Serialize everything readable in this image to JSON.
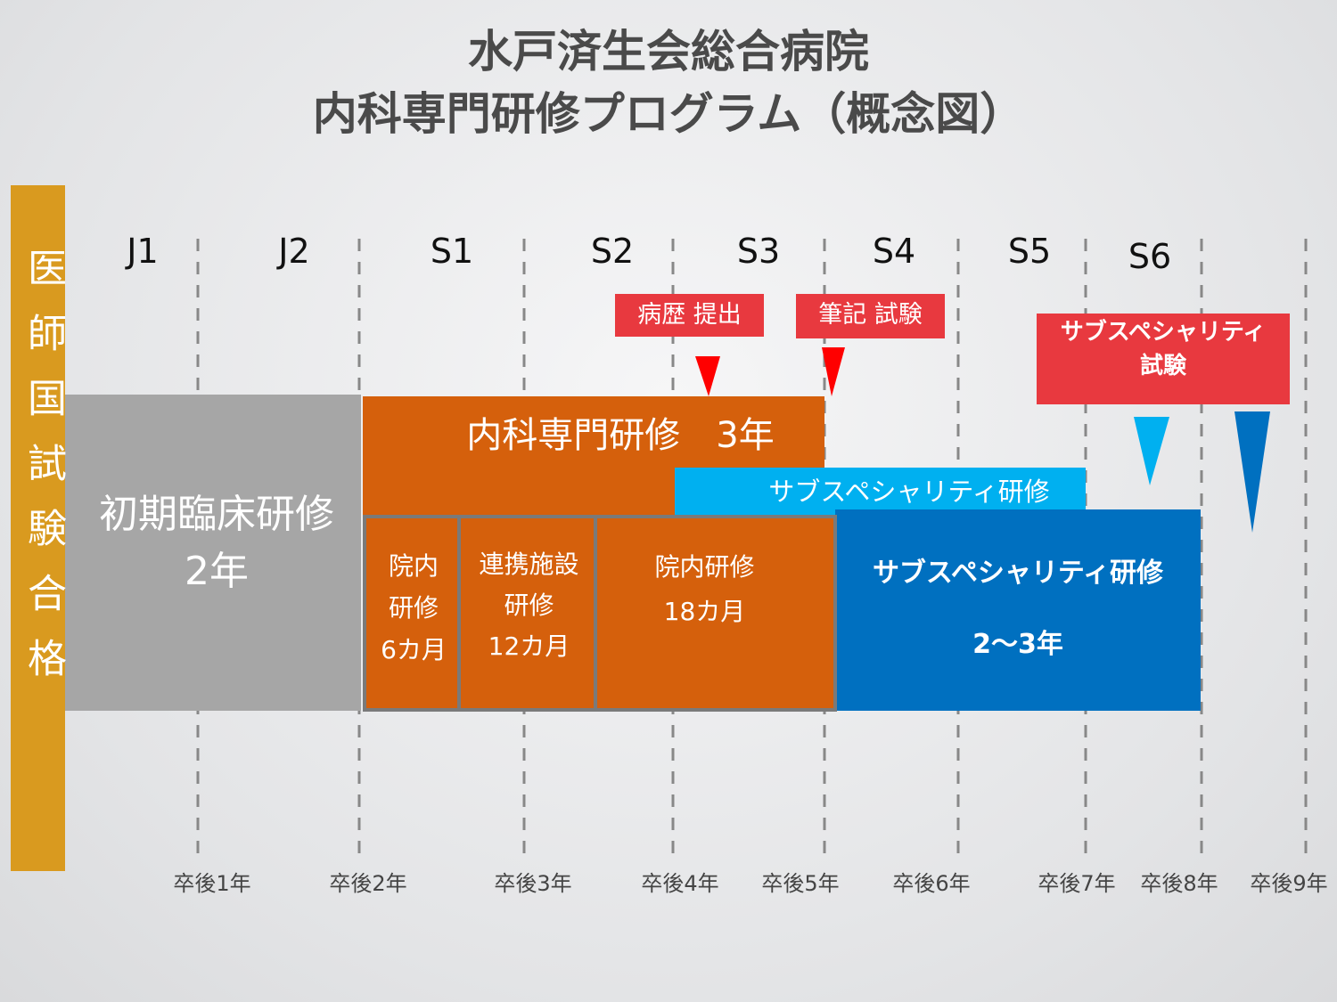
{
  "header": {
    "title_lines": [
      "水戸済生会総合病院",
      "内科専門研修プログラム（概念図）"
    ]
  },
  "side_label": "医師国試験合格",
  "periods": [
    "J1",
    "J2",
    "S1",
    "S2",
    "S3",
    "S4",
    "S5",
    "S6"
  ],
  "years_after_graduation": [
    "卒後1年",
    "卒後2年",
    "卒後3年",
    "卒後4年",
    "卒後5年",
    "卒後6年",
    "卒後7年",
    "卒後8年",
    "卒後9年"
  ],
  "milestones": [
    {
      "lines": [
        "病歴 提出"
      ]
    },
    {
      "lines": [
        "筆記 試験"
      ]
    },
    {
      "lines": [
        "サブスペシャリティ",
        "試験"
      ]
    }
  ],
  "blocks": {
    "initial": {
      "lines": [
        "初期臨床研修",
        "2年"
      ]
    },
    "internal": {
      "lines": [
        "内科専門研修　3年"
      ]
    },
    "subspecialty_overlap": {
      "lines": [
        "サブスペシャリティ研修"
      ]
    },
    "internal_parts": [
      {
        "lines": [
          "院内",
          "研修",
          "6カ月"
        ]
      },
      {
        "lines": [
          "連携施設",
          "研修",
          "12カ月"
        ]
      },
      {
        "lines": [
          "院内研修",
          "18カ月"
        ]
      }
    ],
    "subspecialty": {
      "lines": [
        "サブスペシャリティ研修",
        "2～3年"
      ]
    }
  }
}
